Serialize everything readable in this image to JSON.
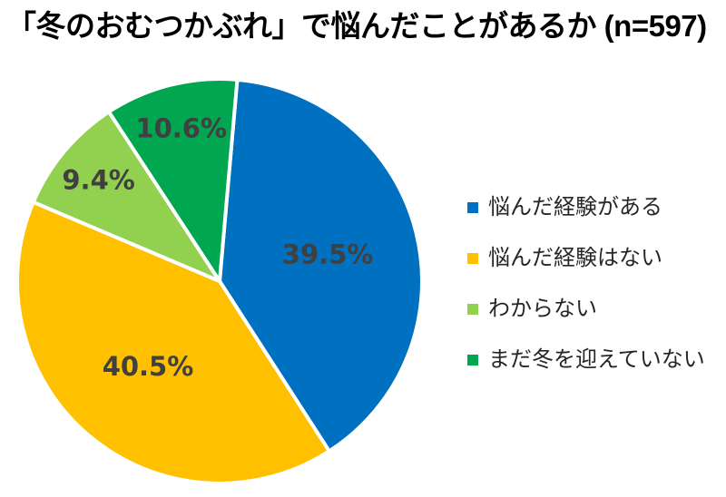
{
  "chart_data": {
    "type": "pie",
    "title": "「冬のおむつかぶれ」で悩んだことがあるか (n=597)",
    "categories": [
      "悩んだ経験がある",
      "悩んだ経験はない",
      "わからない",
      "まだ冬を迎えていない"
    ],
    "values": [
      39.5,
      40.5,
      9.4,
      10.6
    ],
    "series": [
      {
        "label": "悩んだ経験がある",
        "value": 39.5,
        "data_label": "39.5%",
        "color": "#0070C0"
      },
      {
        "label": "悩んだ経験はない",
        "value": 40.5,
        "data_label": "40.5%",
        "color": "#FFC000"
      },
      {
        "label": "わからない",
        "value": 9.4,
        "data_label": "9.4%",
        "color": "#92D050"
      },
      {
        "label": "まだ冬を迎えていない",
        "value": 10.6,
        "data_label": "10.6%",
        "color": "#00A650"
      }
    ],
    "legend_position": "right",
    "layout": {
      "start_angle_deg": 5,
      "direction": "clockwise",
      "slice_gap_color": "#FFFFFF",
      "data_label_color": "#404040",
      "grid": false
    }
  }
}
